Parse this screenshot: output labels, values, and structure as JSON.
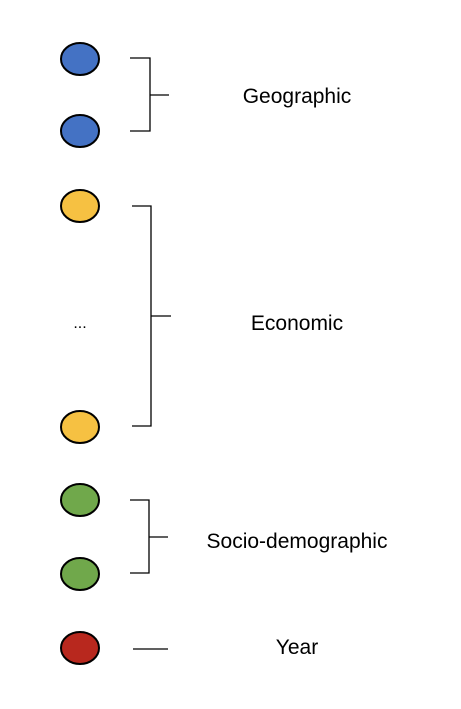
{
  "groups": [
    {
      "label": "Geographic",
      "color": "#4472C4",
      "nodes": 2
    },
    {
      "label": "Economic",
      "color": "#F6C142",
      "nodes": 2,
      "ellipsis": "..."
    },
    {
      "label": "Socio-demographic",
      "color": "#70A84B",
      "nodes": 2
    },
    {
      "label": "Year",
      "color": "#B8281E",
      "nodes": 1
    }
  ]
}
